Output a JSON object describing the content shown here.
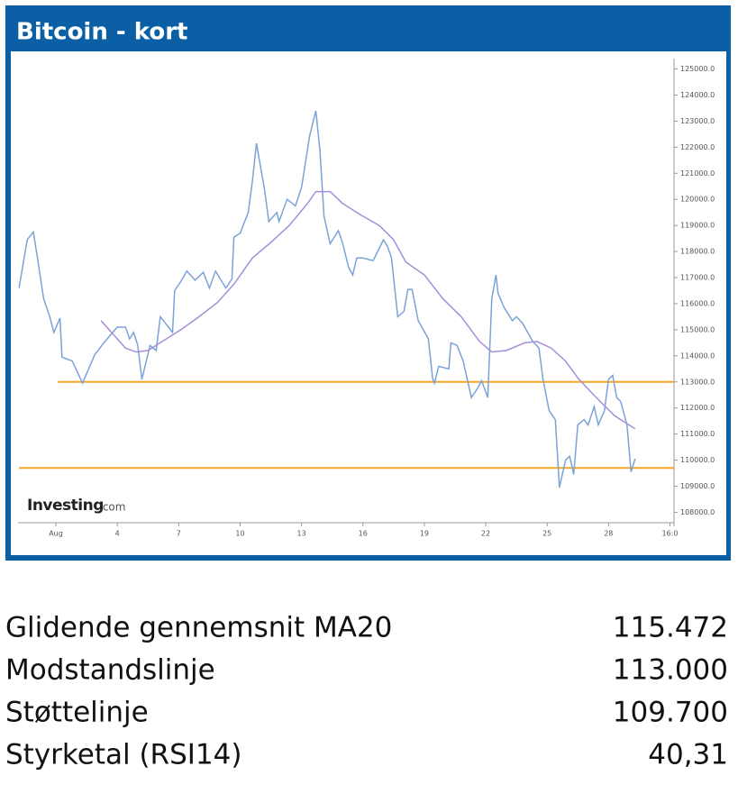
{
  "chart_data": {
    "type": "line",
    "title": "Bitcoin - kort",
    "xlim": [
      -0.85,
      31.2
    ],
    "ylim": [
      107600,
      125400
    ],
    "xticks": [
      {
        "value": 1,
        "label": "Aug"
      },
      4,
      7,
      10,
      13,
      16,
      19,
      22,
      25,
      28,
      {
        "value": 31,
        "label": "16:0"
      }
    ],
    "yticks": [
      {
        "value": 125000,
        "label": "125000.0"
      },
      {
        "value": 124000,
        "label": "124000.0"
      },
      {
        "value": 123000,
        "label": "123000.0"
      },
      {
        "value": 122000,
        "label": "122000.0"
      },
      {
        "value": 121000,
        "label": "121000.0"
      },
      {
        "value": 120000,
        "label": "120000.0"
      },
      {
        "value": 119000,
        "label": "119000.0"
      },
      {
        "value": 118000,
        "label": "118000.0"
      },
      {
        "value": 117000,
        "label": "117000.0"
      },
      {
        "value": 116000,
        "label": "116000.0"
      },
      {
        "value": 115000,
        "label": "115000.0"
      },
      {
        "value": 114000,
        "label": "114000.0"
      },
      {
        "value": 113000,
        "label": "113000.0"
      },
      {
        "value": 112000,
        "label": "112000.0"
      },
      {
        "value": 111000,
        "label": "111000.0"
      },
      {
        "value": 110000,
        "label": "110000.0"
      },
      {
        "value": 109000,
        "label": "109000.0"
      },
      {
        "value": 108000,
        "label": "108000.0"
      }
    ],
    "series": [
      {
        "color": "#7ba3d8",
        "x": [
          -0.8,
          -0.4,
          -0.1,
          0.1,
          0.4,
          0.7,
          0.9,
          1.2,
          1.3,
          1.8,
          2.3,
          2.9,
          3.4,
          4.0,
          4.4,
          4.6,
          4.8,
          5.0,
          5.2,
          5.6,
          5.9,
          6.1,
          6.7,
          6.8,
          7.1,
          7.4,
          7.8,
          8.2,
          8.5,
          8.8,
          9.3,
          9.6,
          9.7,
          10.0,
          10.4,
          10.6,
          10.8,
          11.2,
          11.4,
          11.8,
          11.9,
          12.3,
          12.7,
          13.0,
          13.4,
          13.7,
          13.9,
          14.1,
          14.4,
          14.8,
          15.0,
          15.3,
          15.5,
          15.7,
          16.0,
          16.5,
          17.0,
          17.2,
          17.4,
          17.7,
          18.0,
          18.2,
          18.4,
          18.7,
          19.2,
          19.4,
          19.5,
          19.7,
          20.2,
          20.3,
          20.6,
          20.9,
          21.3,
          21.6,
          21.8,
          22.1,
          22.3,
          22.5,
          22.6,
          22.9,
          23.3,
          23.5,
          23.8,
          24.3,
          24.6,
          24.8,
          25.1,
          25.4,
          25.6,
          25.9,
          26.1,
          26.3,
          26.5,
          26.8,
          27.0,
          27.3,
          27.5,
          27.8,
          28.0,
          28.2,
          28.4,
          28.6,
          28.9,
          29.1,
          29.3
        ],
        "values": [
          116600,
          118450,
          118750,
          117750,
          116200,
          115500,
          114900,
          115450,
          113950,
          113800,
          112950,
          114050,
          114550,
          115100,
          115100,
          114650,
          114900,
          114400,
          113100,
          114400,
          114200,
          115500,
          114900,
          116500,
          116850,
          117250,
          116900,
          117200,
          116600,
          117250,
          116600,
          116950,
          118550,
          118700,
          119500,
          120700,
          122150,
          120350,
          119150,
          119500,
          119150,
          120000,
          119750,
          120450,
          122450,
          123400,
          121900,
          119350,
          118300,
          118800,
          118350,
          117400,
          117100,
          117750,
          117750,
          117650,
          118450,
          118200,
          117750,
          115500,
          115700,
          116550,
          116550,
          115350,
          114650,
          113150,
          112950,
          113600,
          113500,
          114500,
          114400,
          113800,
          112400,
          112750,
          113050,
          112400,
          116200,
          117100,
          116400,
          115850,
          115350,
          115500,
          115250,
          114550,
          114300,
          113100,
          111900,
          111550,
          108950,
          110000,
          110150,
          109450,
          111350,
          111550,
          111350,
          112050,
          111350,
          111900,
          113100,
          113250,
          112400,
          112250,
          111350,
          109550,
          110050
        ]
      },
      {
        "color": "#a48fd9",
        "x": [
          3.2,
          3.6,
          4.0,
          4.4,
          4.9,
          5.5,
          6.2,
          7.1,
          8.0,
          8.9,
          9.7,
          10.6,
          11.5,
          12.4,
          13.3,
          13.7,
          14.4,
          15.0,
          15.9,
          16.8,
          17.5,
          18.1,
          19.0,
          19.9,
          20.8,
          21.7,
          22.3,
          23.0,
          23.9,
          24.5,
          25.2,
          25.9,
          26.5,
          27.4,
          28.3,
          29.3
        ],
        "values": [
          115350,
          115000,
          114650,
          114300,
          114150,
          114200,
          114550,
          115000,
          115500,
          116050,
          116750,
          117750,
          118350,
          119000,
          119850,
          120300,
          120300,
          119850,
          119400,
          119000,
          118450,
          117600,
          117100,
          116200,
          115500,
          114550,
          114150,
          114200,
          114500,
          114550,
          114300,
          113800,
          113150,
          112400,
          111700,
          111200
        ]
      }
    ],
    "hlines": [
      {
        "value": 113000,
        "from": 1.1,
        "color": "#f5a623"
      },
      {
        "value": 109700,
        "from": -0.8,
        "color": "#f5a623"
      }
    ],
    "watermark": [
      "Investing",
      ".com"
    ]
  },
  "table": {
    "rows": [
      [
        "Glidende gennemsnit MA20",
        "115.472"
      ],
      [
        "Modstandslinje",
        "113.000"
      ],
      [
        "Støttelinje",
        "109.700"
      ],
      [
        "Styrketal (RSI14)",
        "40,31"
      ]
    ]
  }
}
